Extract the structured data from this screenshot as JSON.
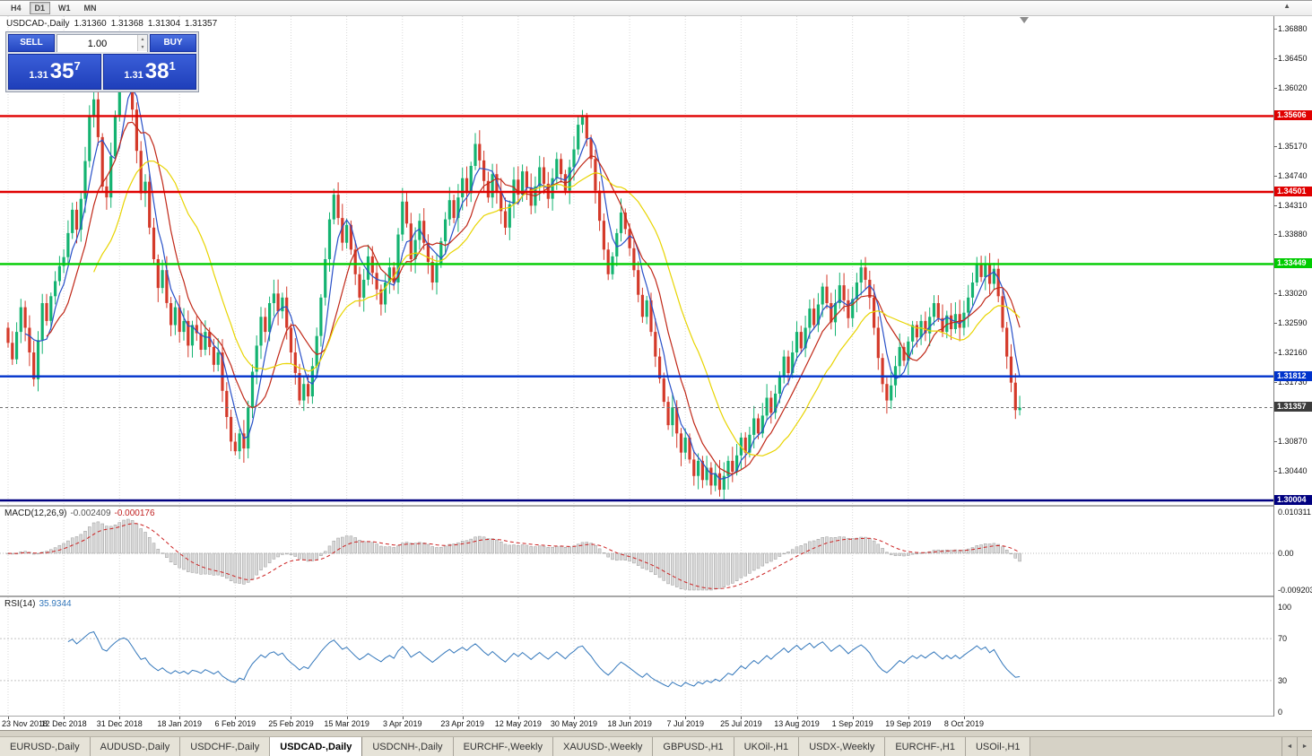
{
  "icons": {
    "spinner_up": "▲",
    "spinner_down": "▼",
    "scroll_left": "◄",
    "scroll_right": "►",
    "corner": "▲"
  },
  "toolbar": {
    "timeframes": [
      "H4",
      "D1",
      "W1",
      "MN"
    ],
    "active_timeframe": "D1"
  },
  "chart": {
    "title": "USDCAD-,Daily",
    "ohlc": {
      "open": "1.31360",
      "high": "1.31368",
      "low": "1.31304",
      "close": "1.31357"
    }
  },
  "trade_widget": {
    "sell_label": "SELL",
    "buy_label": "BUY",
    "volume": "1.00",
    "sell_price": {
      "base": "1.31",
      "big": "35",
      "sup": "7"
    },
    "buy_price": {
      "base": "1.31",
      "big": "38",
      "sup": "1"
    }
  },
  "macd": {
    "name": "MACD(12,26,9)",
    "value_main": "-0.002409",
    "value_signal": "-0.000176",
    "axis": [
      {
        "label": "0.010311",
        "value": 0.010311
      },
      {
        "label": "0.00",
        "value": 0
      },
      {
        "label": "-0.009203",
        "value": -0.009203
      }
    ],
    "histogram_fill": "#d9d9d9",
    "histogram_stroke": "#9a9a9a",
    "signal_color": "#cc2222"
  },
  "rsi": {
    "name": "RSI(14)",
    "value": "35.9344",
    "axis": [
      {
        "label": "100",
        "value": 100
      },
      {
        "label": "70",
        "value": 70
      },
      {
        "label": "30",
        "value": 30
      },
      {
        "label": "0",
        "value": 0
      }
    ],
    "levels": [
      70,
      30
    ],
    "line_color": "#3377bb"
  },
  "tabs": {
    "items": [
      "EURUSD-,Daily",
      "AUDUSD-,Daily",
      "USDCHF-,Daily",
      "USDCAD-,Daily",
      "USDCNH-,Daily",
      "EURCHF-,Weekly",
      "XAUUSD-,Weekly",
      "GBPUSD-,H1",
      "UKOil-,H1",
      "USDX-,Weekly",
      "EURCHF-,H1",
      "USOil-,H1"
    ],
    "active_index": 3
  },
  "chart_data": {
    "type": "candlestick",
    "symbol": "USDCAD-",
    "timeframe": "Daily",
    "bid": 1.31357,
    "ask": 1.31381,
    "ohlc_last": {
      "open": 1.3136,
      "high": 1.31368,
      "low": 1.31304,
      "close": 1.31357
    },
    "y_range": {
      "top": 1.37063,
      "bottom": 1.29938
    },
    "y_ticks": [
      1.3688,
      1.3645,
      1.3602,
      1.3517,
      1.3474,
      1.3431,
      1.3388,
      1.3302,
      1.3259,
      1.3216,
      1.3173,
      1.3087,
      1.3044
    ],
    "hlines": [
      {
        "value": 1.35606,
        "color": "#e00000"
      },
      {
        "value": 1.34501,
        "color": "#e00000"
      },
      {
        "value": 1.33449,
        "color": "#00cc00"
      },
      {
        "value": 1.31812,
        "color": "#0033cc"
      },
      {
        "value": 1.30004,
        "color": "#000080"
      }
    ],
    "bid_line": {
      "value": 1.31357,
      "color": "#707070",
      "label_bg": "#3c3c3c"
    },
    "moving_averages": [
      {
        "period": 5,
        "color": "#2850c8"
      },
      {
        "period": 10,
        "color": "#c02818"
      },
      {
        "period": 21,
        "color": "#e8d400"
      }
    ],
    "candle_colors": {
      "up": "#14b371",
      "down": "#d43a2a"
    },
    "date_labels": [
      {
        "label": "23 Nov 2018",
        "i": 0
      },
      {
        "label": "12 Dec 2018",
        "i": 13
      },
      {
        "label": "31 Dec 2018",
        "i": 26
      },
      {
        "label": "18 Jan 2019",
        "i": 40
      },
      {
        "label": "6 Feb 2019",
        "i": 53
      },
      {
        "label": "25 Feb 2019",
        "i": 66
      },
      {
        "label": "15 Mar 2019",
        "i": 79
      },
      {
        "label": "3 Apr 2019",
        "i": 92
      },
      {
        "label": "23 Apr 2019",
        "i": 106
      },
      {
        "label": "12 May 2019",
        "i": 119
      },
      {
        "label": "30 May 2019",
        "i": 132
      },
      {
        "label": "18 Jun 2019",
        "i": 145
      },
      {
        "label": "7 Jul 2019",
        "i": 158
      },
      {
        "label": "25 Jul 2019",
        "i": 171
      },
      {
        "label": "13 Aug 2019",
        "i": 184
      },
      {
        "label": "1 Sep 2019",
        "i": 197
      },
      {
        "label": "19 Sep 2019",
        "i": 210
      },
      {
        "label": "8 Oct 2019",
        "i": 223
      }
    ],
    "first_open": 1.3252,
    "closes": [
      1.323,
      1.3206,
      1.3246,
      1.3282,
      1.3252,
      1.3216,
      1.3177,
      1.3234,
      1.3288,
      1.3262,
      1.3298,
      1.332,
      1.3342,
      1.3355,
      1.339,
      1.3424,
      1.3395,
      1.344,
      1.3495,
      1.356,
      1.3585,
      1.353,
      1.3458,
      1.3442,
      1.3502,
      1.356,
      1.3612,
      1.3638,
      1.362,
      1.357,
      1.351,
      1.3448,
      1.3465,
      1.3398,
      1.3352,
      1.331,
      1.3336,
      1.3288,
      1.3256,
      1.3282,
      1.3246,
      1.3262,
      1.3226,
      1.3256,
      1.3244,
      1.322,
      1.3246,
      1.3224,
      1.3198,
      1.3216,
      1.316,
      1.3122,
      1.3086,
      1.3072,
      1.3098,
      1.3076,
      1.3136,
      1.3188,
      1.3226,
      1.3268,
      1.3246,
      1.3288,
      1.3302,
      1.3276,
      1.3296,
      1.3252,
      1.3216,
      1.3186,
      1.3146,
      1.317,
      1.3152,
      1.3196,
      1.324,
      1.3296,
      1.3352,
      1.341,
      1.3446,
      1.3412,
      1.3376,
      1.3402,
      1.3366,
      1.333,
      1.3296,
      1.3322,
      1.3356,
      1.3332,
      1.3308,
      1.3286,
      1.3318,
      1.334,
      1.3318,
      1.3388,
      1.3436,
      1.3404,
      1.3352,
      1.338,
      1.3408,
      1.3376,
      1.3348,
      1.3318,
      1.3346,
      1.3378,
      1.341,
      1.3438,
      1.3412,
      1.3442,
      1.347,
      1.3448,
      1.3488,
      1.352,
      1.3496,
      1.3466,
      1.3442,
      1.3476,
      1.345,
      1.3422,
      1.3398,
      1.3432,
      1.3468,
      1.3446,
      1.348,
      1.3456,
      1.343,
      1.3458,
      1.3486,
      1.3462,
      1.344,
      1.347,
      1.3498,
      1.3476,
      1.3452,
      1.3486,
      1.3512,
      1.3548,
      1.356,
      1.3528,
      1.3498,
      1.3452,
      1.3408,
      1.3366,
      1.333,
      1.3356,
      1.339,
      1.342,
      1.3396,
      1.3368,
      1.3336,
      1.33,
      1.3268,
      1.3292,
      1.3246,
      1.321,
      1.3178,
      1.3144,
      1.311,
      1.3136,
      1.3098,
      1.307,
      1.3092,
      1.306,
      1.3036,
      1.3058,
      1.303,
      1.3048,
      1.3022,
      1.304,
      1.3016,
      1.3036,
      1.3058,
      1.3042,
      1.3066,
      1.3092,
      1.307,
      1.3096,
      1.312,
      1.3098,
      1.3124,
      1.315,
      1.3128,
      1.3156,
      1.318,
      1.321,
      1.3186,
      1.3216,
      1.3246,
      1.3222,
      1.3252,
      1.328,
      1.3256,
      1.3286,
      1.3312,
      1.3288,
      1.326,
      1.3288,
      1.3314,
      1.3292,
      1.3266,
      1.3294,
      1.3318,
      1.334,
      1.3322,
      1.3296,
      1.3252,
      1.3208,
      1.317,
      1.3146,
      1.3168,
      1.3196,
      1.3224,
      1.3204,
      1.3232,
      1.3256,
      1.3238,
      1.3262,
      1.3244,
      1.3268,
      1.3288,
      1.3266,
      1.3246,
      1.327,
      1.325,
      1.3272,
      1.3252,
      1.3274,
      1.3296,
      1.3318,
      1.3344,
      1.3326,
      1.3344,
      1.3316,
      1.3338,
      1.3298,
      1.3252,
      1.321,
      1.3172,
      1.3132,
      1.31357
    ]
  }
}
